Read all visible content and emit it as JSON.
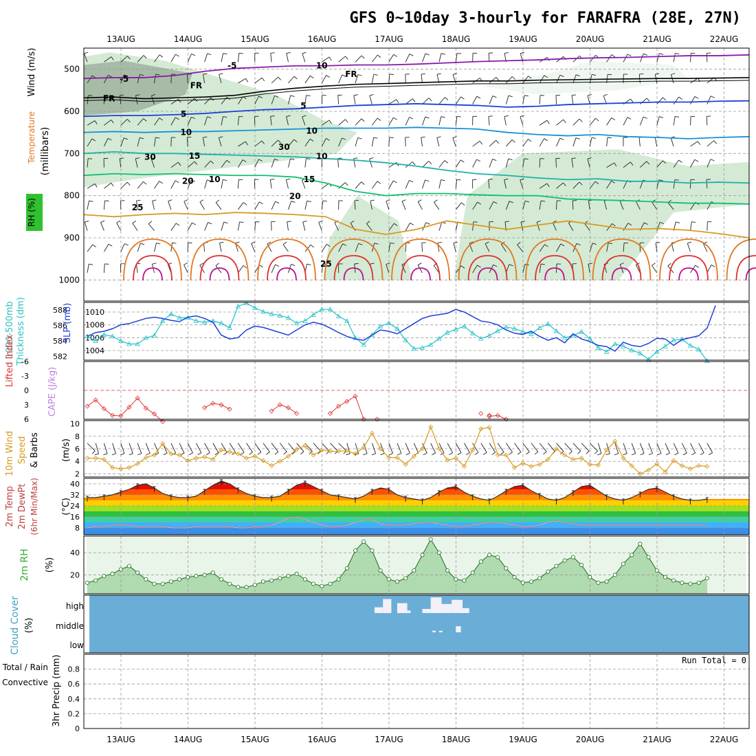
{
  "title": "GFS 0~10day 3-hourly for FARAFRA (28E, 27N)",
  "colors": {
    "purple": "#8a1aa8",
    "black": "#000000",
    "blue": "#1c3fd8",
    "sky": "#1890d8",
    "teal": "#20b0a8",
    "green": "#10c070",
    "orange": "#d89a20",
    "darkorange": "#e07820",
    "red": "#e03030",
    "magenta": "#c0108a",
    "cyan": "#20c0c8",
    "rhgreen": "#30b030",
    "cloudbg": "#6aaed8",
    "precipRed": "#e02020",
    "precipGreen": "#20a020",
    "lightgreen": "#cfe8cf"
  },
  "chart_data": [
    {
      "id": "upper",
      "type": "contour",
      "xtick_labels": [
        "13AUG",
        "14AUG",
        "15AUG",
        "16AUG",
        "17AUG",
        "18AUG",
        "19AUG",
        "20AUG",
        "21AUG",
        "22AUG"
      ],
      "ylabel": "(millibars)",
      "side_labels": [
        "Wind (m/s)",
        "Temperature (°C)",
        "RH (%)"
      ],
      "ylim": [
        1000,
        450
      ],
      "yticks": [
        500,
        600,
        700,
        800,
        900,
        1000
      ],
      "contours": [
        {
          "label": "-5",
          "color": "purple",
          "lev": [
            522,
            520,
            520,
            515,
            505,
            498,
            495,
            492,
            492,
            490,
            490,
            488,
            485,
            482,
            480,
            478,
            475,
            473,
            472,
            470,
            468,
            468,
            466
          ]
        },
        {
          "label": "FR",
          "color": "black",
          "lev": [
            568,
            566,
            570,
            568,
            566,
            562,
            552,
            545,
            540,
            536,
            534,
            532,
            530,
            528,
            528,
            526,
            525,
            524,
            523,
            522,
            522,
            521,
            520
          ]
        },
        {
          "label": "5",
          "color": "blue",
          "lev": [
            612,
            610,
            610,
            608,
            605,
            600,
            596,
            594,
            590,
            586,
            584,
            582,
            584,
            586,
            590,
            588,
            584,
            582,
            580,
            578,
            578,
            576,
            575
          ]
        },
        {
          "label": "10",
          "color": "sky",
          "lev": [
            650,
            648,
            650,
            648,
            648,
            646,
            644,
            642,
            640,
            640,
            640,
            638,
            640,
            642,
            650,
            655,
            658,
            655,
            660,
            662,
            665,
            662,
            660
          ]
        },
        {
          "label": "15",
          "color": "teal",
          "lev": [
            700,
            696,
            700,
            700,
            702,
            704,
            706,
            708,
            712,
            716,
            722,
            730,
            740,
            748,
            752,
            758,
            762,
            760,
            766,
            766,
            770,
            768,
            770
          ]
        },
        {
          "label": "20",
          "color": "green",
          "lev": [
            752,
            748,
            750,
            748,
            750,
            752,
            752,
            756,
            770,
            790,
            800,
            795,
            795,
            798,
            800,
            800,
            808,
            810,
            812,
            815,
            818,
            818,
            820
          ]
        },
        {
          "label": "25",
          "color": "orange",
          "lev": [
            845,
            850,
            845,
            842,
            845,
            840,
            842,
            845,
            850,
            880,
            892,
            880,
            860,
            870,
            880,
            870,
            860,
            870,
            880,
            878,
            882,
            890,
            900
          ]
        }
      ],
      "contour_labels": [
        {
          "text": "-5",
          "color": "purple",
          "xi": 4.4,
          "p": 522
        },
        {
          "text": "-5",
          "color": "purple",
          "xi": 17.3,
          "p": 490
        },
        {
          "text": "FR",
          "color": "black",
          "xi": 2.6,
          "p": 568
        },
        {
          "text": "FR",
          "color": "black",
          "xi": 13.0,
          "p": 537
        },
        {
          "text": "FR",
          "color": "black",
          "xi": 31.5,
          "p": 510
        },
        {
          "text": "5",
          "color": "blue",
          "xi": 11.5,
          "p": 605
        },
        {
          "text": "5",
          "color": "blue",
          "xi": 25.8,
          "p": 585
        },
        {
          "text": "10",
          "color": "sky",
          "xi": 11.8,
          "p": 648
        },
        {
          "text": "10",
          "color": "sky",
          "xi": 26.8,
          "p": 645
        },
        {
          "text": "15",
          "color": "teal",
          "xi": 12.8,
          "p": 704
        },
        {
          "text": "15",
          "color": "teal",
          "xi": 26.5,
          "p": 760
        },
        {
          "text": "20",
          "color": "green",
          "xi": 12.0,
          "p": 764
        },
        {
          "text": "20",
          "color": "green",
          "xi": 24.8,
          "p": 800
        },
        {
          "text": "25",
          "color": "orange",
          "xi": 6.0,
          "p": 827
        },
        {
          "text": "25",
          "color": "orange",
          "xi": 28.5,
          "p": 960
        },
        {
          "text": "10",
          "color": "grey",
          "xi": 28.0,
          "p": 490
        },
        {
          "text": "30",
          "color": "grey",
          "xi": 23.5,
          "p": 683
        },
        {
          "text": "10",
          "color": "grey",
          "xi": 15.2,
          "p": 760
        },
        {
          "text": "10",
          "color": "grey",
          "xi": 28.0,
          "p": 705
        },
        {
          "text": "30",
          "color": "grey",
          "xi": 7.5,
          "p": 707
        }
      ]
    },
    {
      "id": "slp",
      "type": "line",
      "ylabel_left": [
        "1000-500mb",
        "Thickness (dm)"
      ],
      "ylabel_right": "SLP (mb)",
      "left_yticks": [
        582,
        584,
        586,
        588
      ],
      "left_ylim": [
        581.5,
        589
      ],
      "right_yticks": [
        1004,
        1006,
        1008,
        1010
      ],
      "right_ylim": [
        1002.5,
        1011.5
      ],
      "slp": [
        1006.2,
        1006.8,
        1007.0,
        1007.4,
        1008.0,
        1008.2,
        1008.6,
        1009.0,
        1009.2,
        1009.0,
        1008.7,
        1008.5,
        1009.2,
        1009.4,
        1009.0,
        1008.4,
        1006.4,
        1005.8,
        1006.0,
        1007.2,
        1007.8,
        1007.6,
        1007.2,
        1006.8,
        1006.4,
        1007.2,
        1008.0,
        1008.4,
        1008.1,
        1007.5,
        1006.8,
        1006.2,
        1005.8,
        1005.6,
        1006.4,
        1007.2,
        1007.0,
        1006.6,
        1007.4,
        1008.2,
        1009.0,
        1009.4,
        1009.6,
        1009.8,
        1010.4,
        1010.0,
        1009.3,
        1008.6,
        1008.4,
        1008.0,
        1007.2,
        1006.7,
        1006.5,
        1007.0,
        1006.2,
        1005.6,
        1006.0,
        1005.2,
        1006.6,
        1005.8,
        1005.4,
        1004.8,
        1004.6,
        1003.9,
        1005.3,
        1004.8,
        1004.6,
        1005.1,
        1005.9,
        1005.8,
        1004.8,
        1005.7,
        1006.0,
        1006.3,
        1007.5,
        1011.0
      ],
      "thickness": [
        584.6,
        584.0,
        584.8,
        584.6,
        584.0,
        583.6,
        583.6,
        584.4,
        584.7,
        586.6,
        587.5,
        587.0,
        587.0,
        586.6,
        586.4,
        586.6,
        586.3,
        585.7,
        588.5,
        588.9,
        588.3,
        587.8,
        587.5,
        587.3,
        587.0,
        586.3,
        586.6,
        587.4,
        588.1,
        588.1,
        587.2,
        586.6,
        584.4,
        583.5,
        584.8,
        585.9,
        586.3,
        585.6,
        584.1,
        583.0,
        583.1,
        583.5,
        584.3,
        585.1,
        585.5,
        585.9,
        585.0,
        584.3,
        584.7,
        585.3,
        585.8,
        585.6,
        585.2,
        584.9,
        585.7,
        586.2,
        585.3,
        584.4,
        584.7,
        585.2,
        584.3,
        583.1,
        582.6,
        583.6,
        583.3,
        582.8,
        582.4,
        581.6,
        582.6,
        583.3,
        584.1,
        584.2,
        583.4,
        582.9,
        581.4
      ]
    },
    {
      "id": "li",
      "type": "line",
      "ylabel_left": "Lifted Index",
      "ylabel_right": "CAPE (J/kg)",
      "left_yticks": [
        6,
        3,
        0,
        -3,
        -6
      ],
      "left_labels": [
        "6",
        "3",
        "0",
        "-3",
        "-6"
      ],
      "ylim_top": -6,
      "ylim_bottom": 6,
      "values": [
        3.3,
        2.0,
        3.8,
        5.2,
        5.3,
        3.5,
        1.6,
        3.7,
        4.9,
        6.5,
        null,
        null,
        null,
        null,
        3.6,
        2.7,
        3.0,
        3.9,
        null,
        null,
        null,
        null,
        4.3,
        3.0,
        3.6,
        4.8,
        null,
        null,
        null,
        4.8,
        3.3,
        2.3,
        1.2,
        6.0,
        null,
        null,
        null,
        null,
        null,
        null,
        null,
        null,
        null,
        null,
        null,
        null,
        null,
        null,
        5.4,
        5.2,
        6.0,
        null,
        null,
        null,
        null,
        null,
        null,
        null,
        null,
        null,
        null,
        null,
        null,
        null,
        null,
        null,
        null,
        null,
        null,
        null,
        null,
        null,
        null,
        null,
        null
      ],
      "extra_points": [
        {
          "xi": 17.3,
          "v": 6.0
        },
        {
          "xi": 23.5,
          "v": 4.8
        },
        {
          "xi": 24.0,
          "v": 5.2
        }
      ]
    },
    {
      "id": "wind10",
      "type": "line",
      "ylabel_left": [
        "10m Wind",
        "Speed",
        "& Barbs"
      ],
      "ylabel_right": "(m/s)",
      "yticks": [
        2,
        4,
        6,
        8,
        10
      ],
      "ylim": [
        1.5,
        10.5
      ],
      "values": [
        4.5,
        4.5,
        4.3,
        3.0,
        2.8,
        3.0,
        3.6,
        4.6,
        5.0,
        6.8,
        5.2,
        5.0,
        4.1,
        4.5,
        4.7,
        4.3,
        5.8,
        5.5,
        5.2,
        4.5,
        4.8,
        4.1,
        3.3,
        4.0,
        4.8,
        5.9,
        6.5,
        5.0,
        5.8,
        5.6,
        5.6,
        5.7,
        5.2,
        6.2,
        8.5,
        6.0,
        4.6,
        4.6,
        3.5,
        4.8,
        6.0,
        9.5,
        6.0,
        4.2,
        4.5,
        3.2,
        5.8,
        9.2,
        9.4,
        5.0,
        5.0,
        3.0,
        3.7,
        3.2,
        3.5,
        4.3,
        6.0,
        5.0,
        4.3,
        4.5,
        3.5,
        3.4,
        5.8,
        7.2,
        4.5,
        3.3,
        2.0,
        2.6,
        3.6,
        2.3,
        4.1,
        3.3,
        2.8,
        3.3,
        3.2
      ]
    },
    {
      "id": "temp",
      "type": "area",
      "ylabel_left": [
        "2m Temp",
        "2m DewPt",
        "(6hr Min/Max)"
      ],
      "ylabel_right": "(°C)",
      "yticks": [
        8,
        16,
        24,
        32,
        40
      ],
      "ylim": [
        3,
        44
      ],
      "temp": [
        30,
        30,
        31,
        32,
        34,
        36,
        39,
        40,
        37,
        33,
        31,
        30,
        30,
        31,
        35,
        39,
        42,
        40,
        36,
        33,
        31,
        30,
        30,
        31,
        35,
        39,
        41,
        38,
        35,
        32,
        31,
        30,
        29,
        31,
        35,
        37,
        36,
        32,
        30,
        29,
        28,
        30,
        34,
        37,
        38,
        34,
        31,
        29,
        28,
        31,
        35,
        38,
        39,
        35,
        32,
        29,
        28,
        30,
        34,
        38,
        39,
        35,
        31,
        29,
        28,
        30,
        33,
        36,
        37,
        34,
        31,
        29,
        28,
        28,
        29
      ],
      "dewpt": [
        8,
        9,
        9,
        10,
        10,
        10,
        9,
        9,
        9,
        9,
        8,
        8,
        8,
        9,
        9,
        9,
        9,
        9,
        8,
        8,
        9,
        9,
        10,
        12,
        15,
        16,
        14,
        12,
        10,
        9,
        9,
        10,
        12,
        14,
        14,
        11,
        10,
        10,
        10,
        11,
        12,
        12,
        11,
        10,
        9,
        9,
        10,
        11,
        12,
        12,
        11,
        10,
        9,
        9,
        10,
        12,
        13,
        12,
        11,
        10,
        10,
        10,
        10,
        10,
        10,
        10,
        10,
        10,
        10,
        10,
        10,
        10,
        10,
        10,
        10
      ]
    },
    {
      "id": "rh",
      "type": "area",
      "ylabel_left": "2m RH",
      "ylabel_right": "(%)",
      "yticks": [
        20,
        40
      ],
      "ylim": [
        3,
        55
      ],
      "values": [
        13,
        15,
        19,
        21,
        25,
        28,
        22,
        16,
        12,
        12,
        14,
        16,
        18,
        19,
        20,
        22,
        16,
        12,
        9,
        9,
        11,
        14,
        15,
        17,
        19,
        21,
        16,
        12,
        10,
        12,
        16,
        26,
        42,
        50,
        42,
        24,
        16,
        14,
        17,
        24,
        38,
        52,
        40,
        24,
        16,
        15,
        22,
        32,
        38,
        36,
        26,
        18,
        13,
        14,
        17,
        23,
        28,
        33,
        36,
        29,
        18,
        13,
        14,
        20,
        30,
        38,
        48,
        36,
        24,
        18,
        15,
        13,
        12,
        13,
        17
      ]
    },
    {
      "id": "cloud",
      "type": "heatmap",
      "ylabel_left": [
        "Cloud Cover",
        "(%)"
      ],
      "rows": [
        "high",
        "middle",
        "low"
      ],
      "blocks": [
        {
          "xi0": 34.3,
          "xi1": 35.3,
          "row": "high",
          "frac": 0.35
        },
        {
          "xi0": 35.3,
          "xi1": 36.3,
          "row": "high",
          "frac": 0.85
        },
        {
          "xi0": 37.0,
          "xi1": 38.2,
          "row": "high",
          "frac": 0.6
        },
        {
          "xi0": 38.2,
          "xi1": 38.6,
          "row": "high",
          "frac": 0.15
        },
        {
          "xi0": 40.0,
          "xi1": 41.0,
          "row": "high",
          "frac": 0.25
        },
        {
          "xi0": 41.0,
          "xi1": 42.3,
          "row": "high",
          "frac": 0.95
        },
        {
          "xi0": 42.3,
          "xi1": 43.5,
          "row": "high",
          "frac": 0.55
        },
        {
          "xi0": 43.5,
          "xi1": 44.8,
          "row": "high",
          "frac": 0.8
        },
        {
          "xi0": 44.8,
          "xi1": 45.6,
          "row": "high",
          "frac": 0.3
        },
        {
          "xi0": 44.0,
          "xi1": 44.6,
          "row": "middle",
          "frac": 0.4
        },
        {
          "xi0": 41.2,
          "xi1": 41.6,
          "row": "middle",
          "frac": 0.1
        },
        {
          "xi0": 42.0,
          "xi1": 42.4,
          "row": "middle",
          "frac": 0.1
        }
      ]
    },
    {
      "id": "precip",
      "type": "bar",
      "ylabel_left": [
        "Total / Rain",
        "Convective"
      ],
      "ylabel_right": "3hr Precip (mm)",
      "yticks": [
        0,
        0.2,
        0.4,
        0.6,
        0.8
      ],
      "ytick_labels": [
        "0",
        "0.2",
        "0.4",
        "0.6",
        "0.8"
      ],
      "ylim": [
        0,
        1
      ],
      "run_total": "Run Total = 0",
      "values": []
    }
  ]
}
